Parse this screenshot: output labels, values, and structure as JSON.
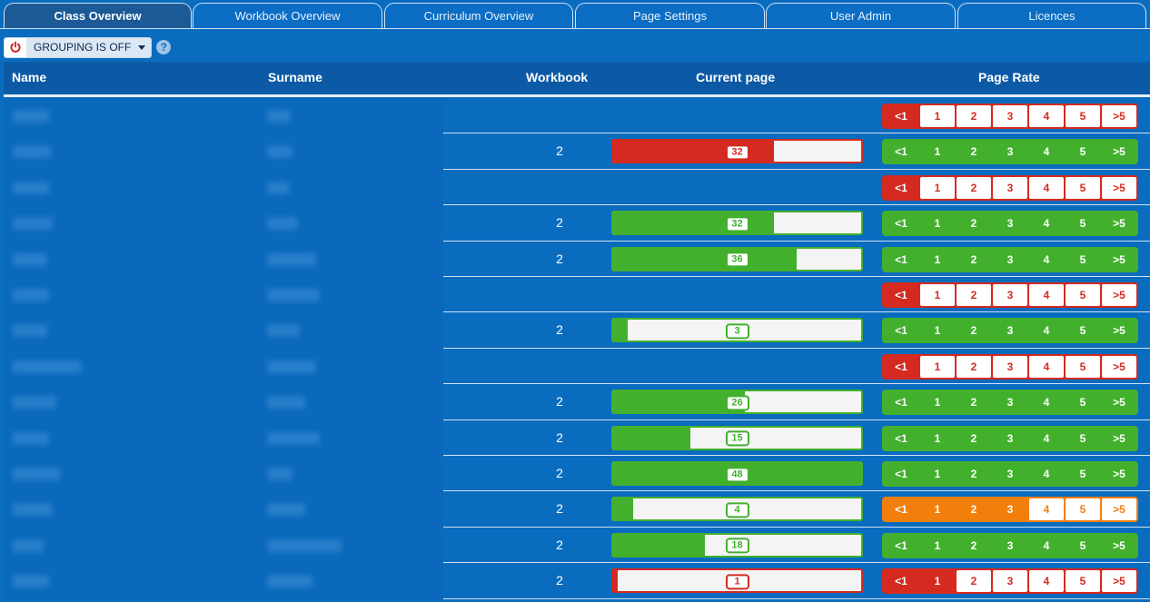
{
  "tabs": [
    {
      "label": "Class Overview",
      "active": true
    },
    {
      "label": "Workbook Overview",
      "active": false
    },
    {
      "label": "Curriculum Overview",
      "active": false
    },
    {
      "label": "Page Settings",
      "active": false
    },
    {
      "label": "User Admin",
      "active": false
    },
    {
      "label": "Licences",
      "active": false
    }
  ],
  "toolbar": {
    "grouping_label": "GROUPING IS OFF",
    "power_icon": "power-icon",
    "help_icon": "help-icon",
    "help_glyph": "?"
  },
  "table": {
    "headers": {
      "name": "Name",
      "surname": "Surname",
      "workbook": "Workbook",
      "current_page": "Current page",
      "page_rate": "Page Rate"
    },
    "rate_labels": [
      "<1",
      "1",
      "2",
      "3",
      "4",
      "5",
      ">5"
    ],
    "colors": {
      "red": "#d52a20",
      "green": "#42b02d",
      "orange": "#f27f0c"
    },
    "rows": [
      {
        "workbook": "",
        "page": null,
        "progress": 0,
        "bar": "",
        "rate_color": "red",
        "rate_level": 1
      },
      {
        "workbook": "2",
        "page": "32",
        "progress": 0.65,
        "bar": "red",
        "rate_color": "green",
        "rate_level": 7
      },
      {
        "workbook": "",
        "page": null,
        "progress": 0,
        "bar": "",
        "rate_color": "red",
        "rate_level": 1
      },
      {
        "workbook": "2",
        "page": "32",
        "progress": 0.65,
        "bar": "green",
        "rate_color": "green",
        "rate_level": 7
      },
      {
        "workbook": "2",
        "page": "36",
        "progress": 0.74,
        "bar": "green",
        "rate_color": "green",
        "rate_level": 7
      },
      {
        "workbook": "",
        "page": null,
        "progress": 0,
        "bar": "",
        "rate_color": "red",
        "rate_level": 1
      },
      {
        "workbook": "2",
        "page": "3",
        "progress": 0.06,
        "bar": "green",
        "rate_color": "green",
        "rate_level": 7
      },
      {
        "workbook": "",
        "page": null,
        "progress": 0,
        "bar": "",
        "rate_color": "red",
        "rate_level": 1
      },
      {
        "workbook": "2",
        "page": "26",
        "progress": 0.53,
        "bar": "green",
        "rate_color": "green",
        "rate_level": 7
      },
      {
        "workbook": "2",
        "page": "15",
        "progress": 0.31,
        "bar": "green",
        "rate_color": "green",
        "rate_level": 7
      },
      {
        "workbook": "2",
        "page": "48",
        "progress": 1.0,
        "bar": "green",
        "rate_color": "green",
        "rate_level": 7
      },
      {
        "workbook": "2",
        "page": "4",
        "progress": 0.08,
        "bar": "green",
        "rate_color": "orange",
        "rate_level": 4
      },
      {
        "workbook": "2",
        "page": "18",
        "progress": 0.37,
        "bar": "green",
        "rate_color": "green",
        "rate_level": 7
      },
      {
        "workbook": "2",
        "page": "1",
        "progress": 0.02,
        "bar": "red",
        "rate_color": "red",
        "rate_level": 2
      }
    ]
  }
}
